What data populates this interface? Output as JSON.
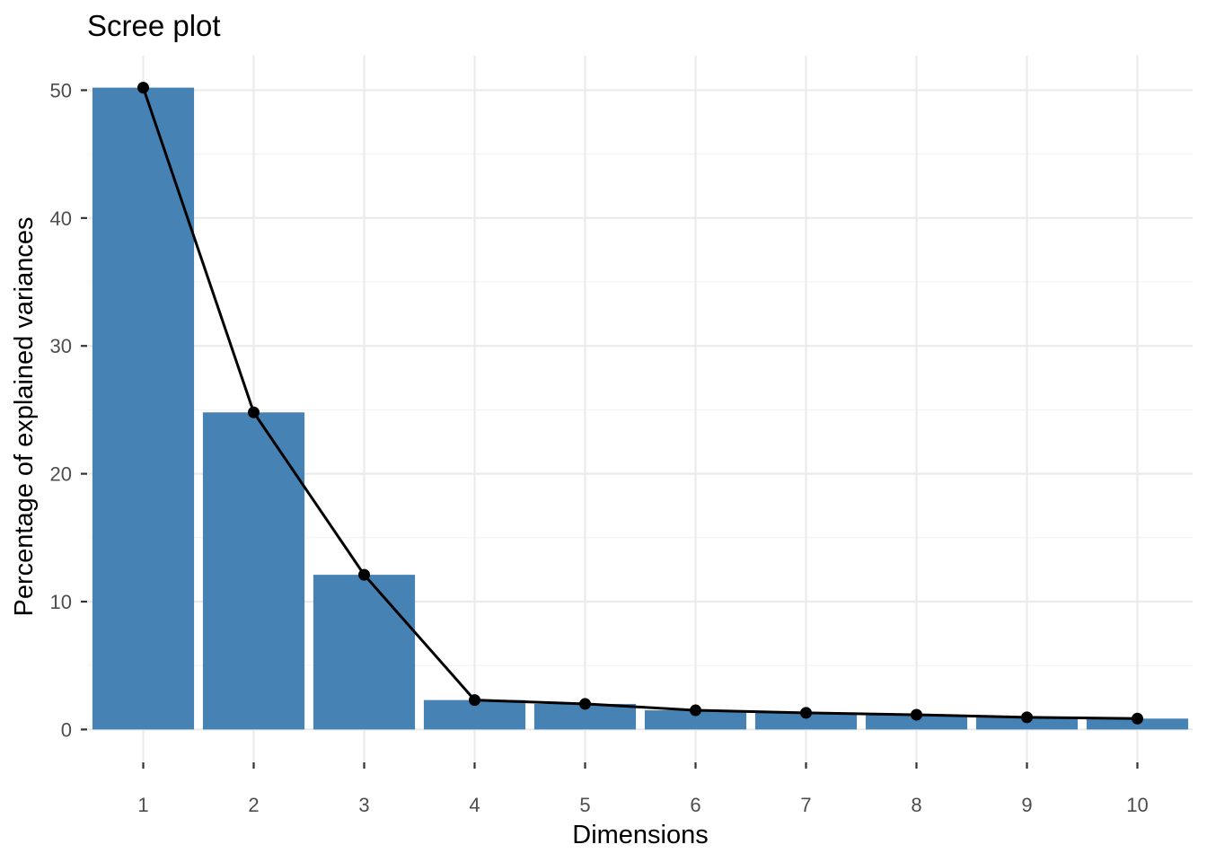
{
  "chart_data": {
    "type": "bar",
    "title": "Scree plot",
    "xlabel": "Dimensions",
    "ylabel": "Percentage of explained variances",
    "categories": [
      "1",
      "2",
      "3",
      "4",
      "5",
      "6",
      "7",
      "8",
      "9",
      "10"
    ],
    "values": [
      50.2,
      24.8,
      12.1,
      2.3,
      2.0,
      1.5,
      1.3,
      1.15,
      0.95,
      0.85
    ],
    "line_overlay": true,
    "ylim": [
      -2.5,
      52.7
    ],
    "yticks": [
      0,
      10,
      20,
      30,
      40,
      50
    ],
    "ytick_labels": [
      "0",
      "10",
      "20",
      "30",
      "40",
      "50"
    ],
    "grid": true,
    "legend": "none",
    "colors": {
      "bar_fill": "#4682B4",
      "line": "#000000",
      "point": "#000000",
      "grid": "#ebebeb"
    }
  }
}
